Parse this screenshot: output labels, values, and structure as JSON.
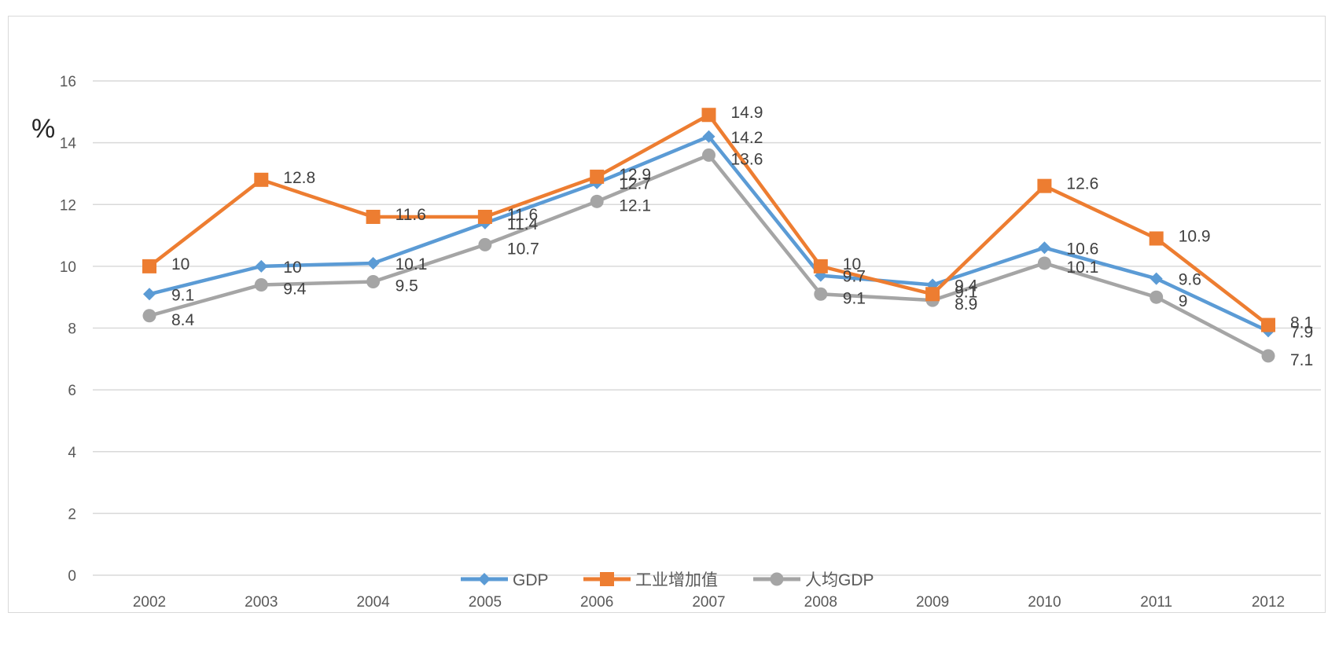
{
  "chart_data": {
    "type": "line",
    "ylabel": "%",
    "ylim": [
      0,
      16
    ],
    "yticks": [
      0,
      2,
      4,
      6,
      8,
      10,
      12,
      14,
      16
    ],
    "categories": [
      "2002",
      "2003",
      "2004",
      "2005",
      "2006",
      "2007",
      "2008",
      "2009",
      "2010",
      "2011",
      "2012"
    ],
    "grid": true,
    "legend_position": "bottom",
    "series": [
      {
        "name": "GDP",
        "color": "#5b9bd5",
        "marker": "diamond",
        "values": [
          9.1,
          10,
          10.1,
          11.4,
          12.7,
          14.2,
          9.7,
          9.4,
          10.6,
          9.6,
          7.9
        ]
      },
      {
        "name": "工业增加值",
        "color": "#ed7d31",
        "marker": "square",
        "values": [
          10,
          12.8,
          11.6,
          11.6,
          12.9,
          14.9,
          10,
          9.1,
          12.6,
          10.9,
          8.1
        ]
      },
      {
        "name": "人均GDP",
        "color": "#a5a5a5",
        "marker": "circle",
        "values": [
          8.4,
          9.4,
          9.5,
          10.7,
          12.1,
          13.6,
          9.1,
          8.9,
          10.1,
          9,
          7.1
        ]
      }
    ]
  }
}
